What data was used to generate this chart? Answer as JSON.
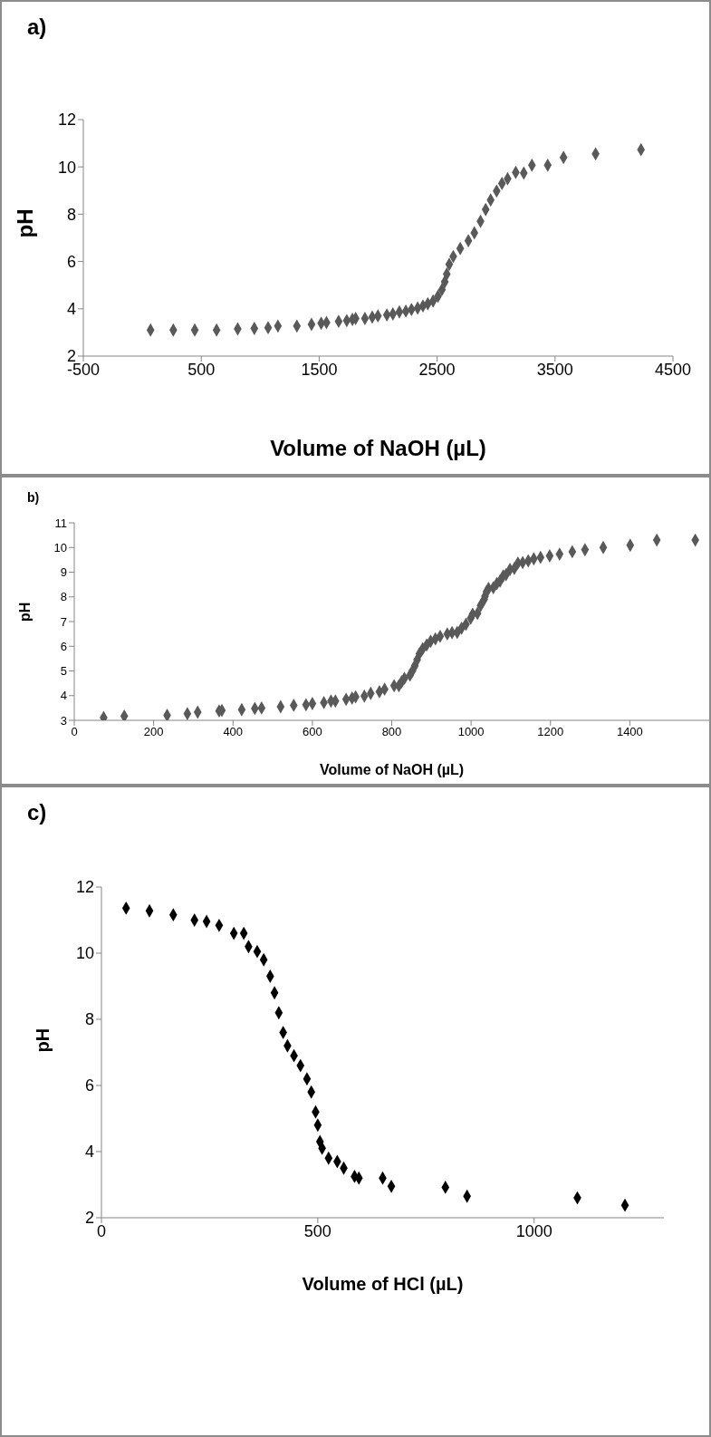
{
  "chart_data": [
    {
      "type": "scatter",
      "title": "a)",
      "xlabel": "Volume of NaOH (µL)",
      "ylabel": "pH",
      "marker": "diamond",
      "color": "#595959",
      "xlim": [
        -500,
        4500
      ],
      "xticks": [
        -500,
        500,
        1500,
        2500,
        3500,
        4500
      ],
      "ylim": [
        2,
        12
      ],
      "yticks": [
        2,
        4,
        6,
        8,
        10,
        12
      ],
      "x": [
        70,
        263,
        445,
        630,
        809,
        950,
        1067,
        1150,
        1311,
        1435,
        1517,
        1562,
        1665,
        1734,
        1782,
        1809,
        1888,
        1950,
        1998,
        2074,
        2125,
        2180,
        2235,
        2283,
        2335,
        2380,
        2421,
        2466,
        2507,
        2541,
        2565,
        2582,
        2603,
        2637,
        2696,
        2765,
        2816,
        2868,
        2912,
        2954,
        3005,
        3050,
        3098,
        3167,
        3235,
        3304,
        3438,
        3572,
        3844,
        4229
      ],
      "values": [
        3.1,
        3.1,
        3.1,
        3.1,
        3.15,
        3.17,
        3.2,
        3.27,
        3.27,
        3.34,
        3.39,
        3.42,
        3.47,
        3.5,
        3.55,
        3.59,
        3.59,
        3.65,
        3.7,
        3.74,
        3.78,
        3.87,
        3.9,
        3.97,
        4.03,
        4.12,
        4.21,
        4.33,
        4.53,
        4.81,
        5.14,
        5.47,
        5.88,
        6.21,
        6.55,
        6.88,
        7.21,
        7.7,
        8.2,
        8.6,
        8.98,
        9.3,
        9.5,
        9.77,
        9.74,
        10.07,
        10.07,
        10.4,
        10.55,
        10.73
      ]
    },
    {
      "type": "scatter",
      "title": "b)",
      "xlabel": "Volume of NaOH (µL)",
      "ylabel": "pH",
      "marker": "diamond",
      "color": "#595959",
      "xlim": [
        0,
        1600
      ],
      "xticks": [
        0,
        200,
        400,
        600,
        800,
        1000,
        1200,
        1400
      ],
      "ylim": [
        3,
        11
      ],
      "yticks": [
        3,
        4,
        5,
        6,
        7,
        8,
        9,
        10,
        11
      ],
      "x": [
        74,
        126,
        234,
        285,
        311,
        365,
        372,
        422,
        455,
        472,
        520,
        553,
        584,
        600,
        629,
        647,
        658,
        685,
        700,
        709,
        731,
        747,
        769,
        782,
        806,
        818,
        825,
        832,
        846,
        852,
        858,
        864,
        870,
        878,
        888,
        898,
        910,
        922,
        940,
        952,
        965,
        976,
        987,
        999,
        1004,
        1016,
        1024,
        1033,
        1035,
        1039,
        1044,
        1056,
        1065,
        1073,
        1081,
        1088,
        1098,
        1109,
        1118,
        1130,
        1144,
        1158,
        1175,
        1198,
        1223,
        1255,
        1287,
        1333,
        1401,
        1468,
        1565
      ],
      "values": [
        3.11,
        3.17,
        3.2,
        3.27,
        3.33,
        3.38,
        3.4,
        3.43,
        3.48,
        3.5,
        3.55,
        3.61,
        3.63,
        3.68,
        3.72,
        3.78,
        3.78,
        3.85,
        3.9,
        3.95,
        3.98,
        4.09,
        4.16,
        4.26,
        4.4,
        4.4,
        4.56,
        4.7,
        4.83,
        5.0,
        5.2,
        5.45,
        5.7,
        5.9,
        6.05,
        6.2,
        6.3,
        6.4,
        6.5,
        6.55,
        6.56,
        6.73,
        6.89,
        7.14,
        7.3,
        7.33,
        7.65,
        7.9,
        8.03,
        8.21,
        8.34,
        8.37,
        8.54,
        8.64,
        8.85,
        8.9,
        9.11,
        9.15,
        9.37,
        9.39,
        9.46,
        9.54,
        9.6,
        9.66,
        9.73,
        9.83,
        9.91,
        10.0,
        10.09,
        10.3,
        10.3
      ]
    },
    {
      "type": "scatter",
      "title": "c)",
      "xlabel": "Volume of HCl (µL)",
      "ylabel": "pH",
      "marker": "diamond",
      "color": "#000000",
      "xlim": [
        0,
        1300
      ],
      "xticks": [
        0,
        500,
        1000
      ],
      "ylim": [
        2,
        12
      ],
      "yticks": [
        2,
        4,
        6,
        8,
        10,
        12
      ],
      "x": [
        57,
        111,
        166,
        215,
        243,
        272,
        306,
        329,
        340,
        360,
        375,
        390,
        400,
        410,
        420,
        430,
        445,
        460,
        475,
        485,
        495,
        500,
        505,
        510,
        525,
        545,
        560,
        585,
        595,
        650,
        670,
        795,
        845,
        1100,
        1210
      ],
      "values": [
        11.36,
        11.28,
        11.16,
        11.0,
        10.96,
        10.84,
        10.6,
        10.6,
        10.2,
        10.05,
        9.8,
        9.3,
        8.8,
        8.2,
        7.6,
        7.2,
        6.9,
        6.6,
        6.2,
        5.8,
        5.2,
        4.8,
        4.3,
        4.1,
        3.8,
        3.7,
        3.5,
        3.25,
        3.2,
        3.2,
        2.95,
        2.92,
        2.65,
        2.6,
        2.38
      ]
    }
  ]
}
